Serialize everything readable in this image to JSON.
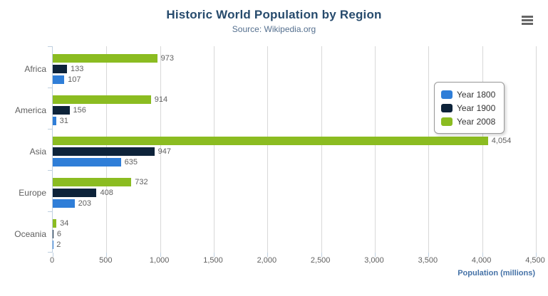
{
  "header": {
    "menu_icon": "hamburger"
  },
  "chart_data": {
    "type": "bar",
    "orientation": "horizontal",
    "title": "Historic World Population by Region",
    "subtitle": "Source: Wikipedia.org",
    "categories": [
      "Africa",
      "America",
      "Asia",
      "Europe",
      "Oceania"
    ],
    "series": [
      {
        "name": "Year 1800",
        "color": "#2f7ed8",
        "values": [
          107,
          31,
          635,
          203,
          2
        ]
      },
      {
        "name": "Year 1900",
        "color": "#0d233a",
        "values": [
          133,
          156,
          947,
          408,
          6
        ]
      },
      {
        "name": "Year 2008",
        "color": "#8bbc21",
        "values": [
          973,
          914,
          4054,
          732,
          34
        ]
      }
    ],
    "bar_order_top_to_bottom": [
      "Year 2008",
      "Year 1900",
      "Year 1800"
    ],
    "xlabel": "Population (millions)",
    "ylabel": "",
    "xlim": [
      0,
      4500
    ],
    "xticks": [
      0,
      500,
      1000,
      1500,
      2000,
      2500,
      3000,
      3500,
      4000,
      4500
    ],
    "xtick_labels": [
      "0",
      "500",
      "1,000",
      "1,500",
      "2,000",
      "2,500",
      "3,000",
      "3,500",
      "4,000",
      "4,500"
    ],
    "grid": true,
    "data_labels": true,
    "legend_position": "right"
  },
  "colors": {
    "title": "#274b6d",
    "subtitle": "#55708f",
    "axis_line": "#c0d0e0",
    "gridline": "#d8d8d8",
    "label_text": "#606060",
    "legend_text": "#333333",
    "x_axis_title": "#4572a7",
    "menu_icon": "#666666"
  }
}
